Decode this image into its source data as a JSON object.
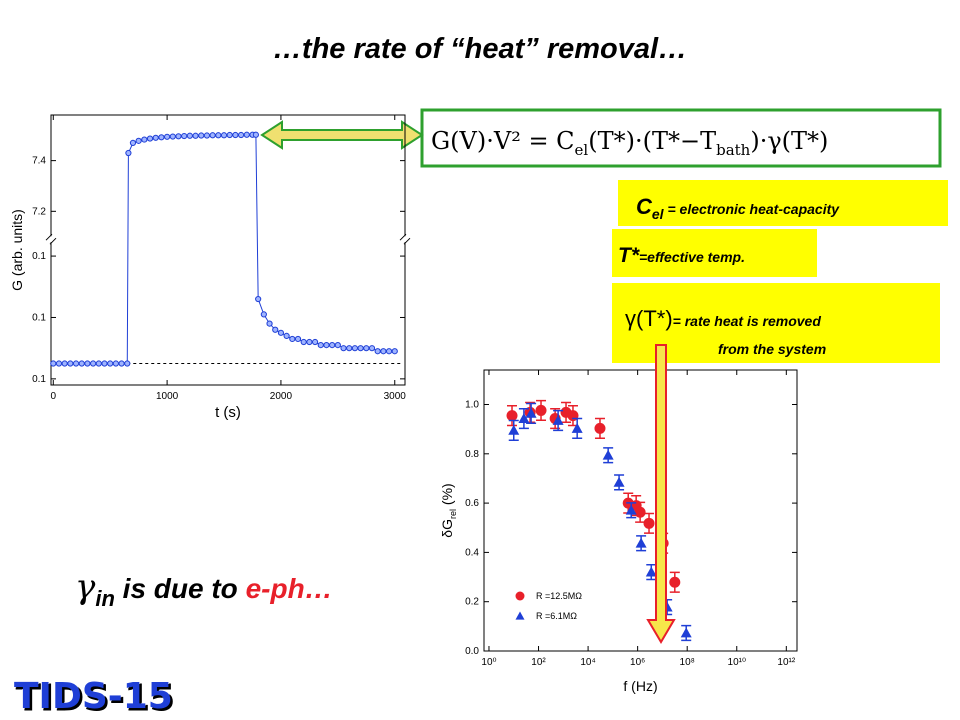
{
  "title": "…the rate of “heat” removal…",
  "equation": {
    "lhs": "G(V)·V² = C",
    "sub1": "el",
    "mid": "(T*)·(T*−T",
    "sub2": "bath",
    "rhs": ")·γ(T*)"
  },
  "notes": [
    {
      "main": "C",
      "sub": "el",
      "text": " =  electronic  heat-capacity"
    },
    {
      "main": "T*",
      "text": "=effective temp."
    },
    {
      "main": "γ(T*)",
      "text": "= rate heat is removed",
      "text2": "from the system"
    }
  ],
  "conclusion": {
    "main": "γ",
    "sub": "in",
    "text1": " is due to ",
    "highlight": "e-ph…"
  },
  "logo": "TIDS-15",
  "chart_data": [
    {
      "type": "line",
      "xlabel": "t (s)",
      "ylabel": "G (arb. units)",
      "xlim": [
        -20,
        3090
      ],
      "xticks": [
        0,
        1000,
        2000,
        3000
      ],
      "ylim": [
        0.078,
        7.58
      ],
      "ybreak": [
        0.1255,
        7.09
      ],
      "yticks": [
        {
          "value": 0.08,
          "label": "0.1"
        },
        0.1,
        {
          "value": 0.12,
          "label": "0.1"
        },
        7.2,
        7.4
      ],
      "hline": 0.085,
      "x": [
        0,
        50,
        100,
        150,
        200,
        250,
        300,
        350,
        400,
        450,
        500,
        550,
        600,
        650,
        660,
        700,
        750,
        800,
        850,
        900,
        950,
        1000,
        1050,
        1100,
        1150,
        1200,
        1250,
        1300,
        1350,
        1400,
        1450,
        1500,
        1550,
        1600,
        1650,
        1700,
        1750,
        1780,
        1800,
        1850,
        1900,
        1950,
        2000,
        2050,
        2100,
        2150,
        2200,
        2250,
        2300,
        2350,
        2400,
        2450,
        2500,
        2550,
        2600,
        2650,
        2700,
        2750,
        2800,
        2850,
        2900,
        2950,
        3000
      ],
      "series": [
        {
          "color": "#1f3fd6",
          "values": [
            0.085,
            0.085,
            0.085,
            0.085,
            0.085,
            0.085,
            0.085,
            0.085,
            0.085,
            0.085,
            0.085,
            0.085,
            0.085,
            0.085,
            7.43,
            7.47,
            7.478,
            7.483,
            7.487,
            7.49,
            7.492,
            7.494,
            7.495,
            7.496,
            7.497,
            7.498,
            7.498,
            7.499,
            7.499,
            7.5,
            7.5,
            7.5,
            7.501,
            7.501,
            7.501,
            7.502,
            7.502,
            7.502,
            0.106,
            0.101,
            0.098,
            0.096,
            0.095,
            0.094,
            0.093,
            0.093,
            0.092,
            0.092,
            0.092,
            0.091,
            0.091,
            0.091,
            0.091,
            0.09,
            0.09,
            0.09,
            0.09,
            0.09,
            0.09,
            0.089,
            0.089,
            0.089,
            0.089
          ]
        }
      ]
    },
    {
      "type": "scatter",
      "xlabel": "f (Hz)",
      "ylabel": {
        "main": "δG",
        "sub": "rel",
        "unit": " (%)"
      },
      "xscale": "log",
      "xlim": [
        0.63,
        2700000000000.0
      ],
      "xticks": [
        {
          "value": 1,
          "label": "10⁰"
        },
        {
          "value": 100,
          "label": "10²"
        },
        {
          "value": 10000,
          "label": "10⁴"
        },
        {
          "value": 1000000,
          "label": "10⁶"
        },
        {
          "value": 100000000,
          "label": "10⁸"
        },
        {
          "value": 10000000000,
          "label": "10¹⁰"
        },
        {
          "value": 1000000000000,
          "label": "10¹²"
        }
      ],
      "ylim": [
        0,
        1.14
      ],
      "yticks": [
        {
          "value": 0,
          "label": "0.0"
        },
        0.2,
        0.4,
        0.6,
        0.8,
        {
          "value": 1,
          "label": "1.0"
        }
      ],
      "legend": "lower left",
      "series": [
        {
          "name": "R =12.5MΩ",
          "color": "#e8202a",
          "marker": "circle",
          "x": [
            8.51,
            45.7,
            126,
            468,
            1288,
            2455,
            30200,
            417000,
            871000,
            1260000,
            2880000,
            10700000,
            31600000
          ],
          "values": [
            0.955,
            0.968,
            0.976,
            0.943,
            0.968,
            0.955,
            0.903,
            0.6,
            0.59,
            0.563,
            0.518,
            0.437,
            0.279
          ],
          "errors": [
            0.04,
            0.04,
            0.04,
            0.04,
            0.04,
            0.04,
            0.04,
            0.04,
            0.04,
            0.04,
            0.04,
            0.04,
            0.04
          ]
        },
        {
          "name": "R =6.1MΩ",
          "color": "#1f3fd6",
          "marker": "triangle",
          "x": [
            10,
            25.7,
            50.1,
            617,
            3630,
            64600,
            178000,
            550000,
            1380000,
            3550000,
            15500000,
            91200000
          ],
          "values": [
            0.895,
            0.943,
            0.964,
            0.935,
            0.903,
            0.794,
            0.684,
            0.571,
            0.437,
            0.32,
            0.178,
            0.073
          ],
          "errors": [
            0.04,
            0.04,
            0.04,
            0.04,
            0.04,
            0.03,
            0.03,
            0.03,
            0.03,
            0.03,
            0.03,
            0.03
          ]
        }
      ]
    }
  ]
}
